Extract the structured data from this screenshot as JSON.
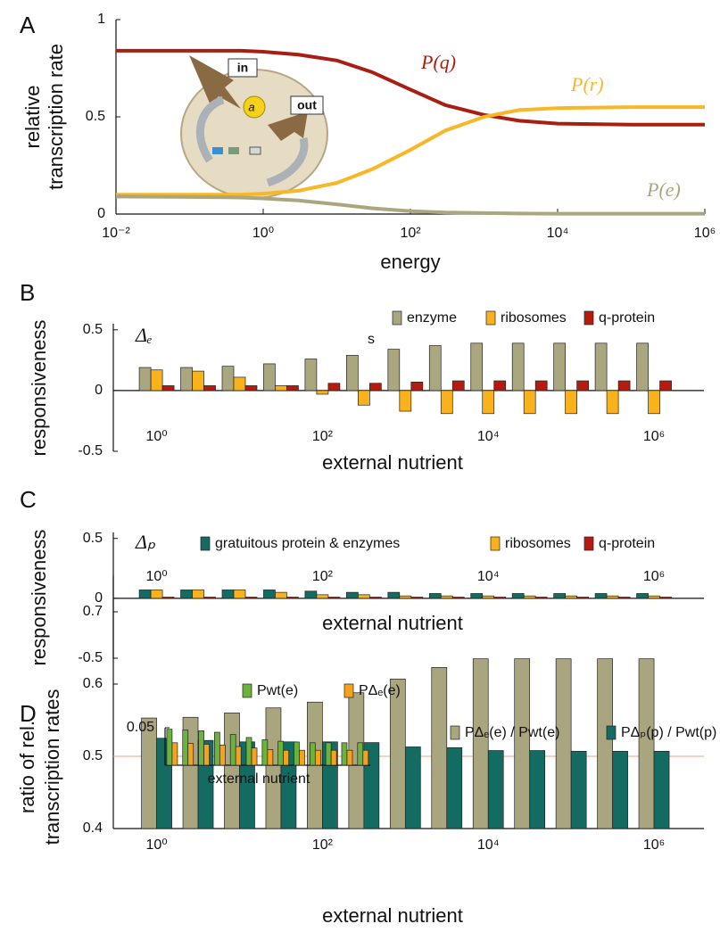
{
  "chart_data": [
    {
      "type": "line",
      "panel": "A",
      "xlabel": "energy",
      "ylabel": [
        "relative",
        "transcription rate"
      ],
      "xscale": "log",
      "x": [
        0.01,
        0.1,
        0.5,
        1,
        3,
        10,
        30,
        100,
        300,
        1000,
        3000,
        10000,
        100000,
        1000000
      ],
      "xlim": [
        0.01,
        1000000
      ],
      "xticks": [
        {
          "value": 0.01,
          "label": "10⁻²"
        },
        {
          "value": 1,
          "label": "10⁰"
        },
        {
          "value": 100,
          "label": "10²"
        },
        {
          "value": 10000,
          "label": "10⁴"
        },
        {
          "value": 1000000,
          "label": "10⁶"
        }
      ],
      "ylim": [
        0,
        1
      ],
      "yticks": [
        0,
        0.5,
        1
      ],
      "series": [
        {
          "name": "P(q)",
          "color": "#a81e12",
          "values": [
            0.84,
            0.84,
            0.84,
            0.835,
            0.82,
            0.79,
            0.73,
            0.64,
            0.56,
            0.51,
            0.48,
            0.465,
            0.46,
            0.46
          ]
        },
        {
          "name": "P(r)",
          "color": "#f9b625",
          "values": [
            0.1,
            0.1,
            0.1,
            0.105,
            0.12,
            0.16,
            0.23,
            0.33,
            0.43,
            0.5,
            0.535,
            0.545,
            0.55,
            0.55
          ]
        },
        {
          "name": "P(e)",
          "color": "#aaa67f",
          "values": [
            0.09,
            0.088,
            0.085,
            0.08,
            0.07,
            0.05,
            0.03,
            0.015,
            0.008,
            0.005,
            0.003,
            0.002,
            0.002,
            0.002
          ]
        }
      ],
      "diagram_labels": [
        "in",
        "out",
        "a"
      ]
    },
    {
      "type": "bar",
      "panel": "B",
      "xlabel": "external nutrient",
      "ylabel": "responsiveness",
      "xscale": "log",
      "x": [
        1,
        3.162,
        10,
        31.62,
        100,
        316.2,
        1000,
        3162,
        10000,
        31623,
        100000,
        316228,
        1000000
      ],
      "xlim": [
        0.3,
        4000000
      ],
      "xticks": [
        {
          "value": 1,
          "label": "10⁰"
        },
        {
          "value": 100,
          "label": "10²"
        },
        {
          "value": 10000,
          "label": "10⁴"
        },
        {
          "value": 1000000,
          "label": "10⁶"
        }
      ],
      "ylim": [
        -0.5,
        0.55
      ],
      "yticks": [
        -0.5,
        0,
        0.5
      ],
      "annotations": [
        "Δₑ",
        "s"
      ],
      "series": [
        {
          "name": "enzyme",
          "color": "#aaa67f",
          "values": [
            0.19,
            0.19,
            0.2,
            0.22,
            0.26,
            0.29,
            0.34,
            0.37,
            0.39,
            0.39,
            0.39,
            0.39,
            0.39
          ]
        },
        {
          "name": "ribosomes",
          "color": "#f9b21c",
          "values": [
            0.17,
            0.16,
            0.11,
            0.04,
            -0.03,
            -0.12,
            -0.17,
            -0.19,
            -0.19,
            -0.19,
            -0.19,
            -0.19,
            -0.19
          ]
        },
        {
          "name": "q-protein",
          "color": "#b41c10",
          "values": [
            0.04,
            0.04,
            0.04,
            0.04,
            0.06,
            0.06,
            0.07,
            0.08,
            0.08,
            0.08,
            0.08,
            0.08,
            0.08
          ]
        }
      ]
    },
    {
      "type": "bar",
      "panel": "C",
      "xlabel": "external nutrient",
      "ylabel": "responsiveness",
      "xscale": "log",
      "x": [
        1,
        3.162,
        10,
        31.62,
        100,
        316.2,
        1000,
        3162,
        10000,
        31623,
        100000,
        316228,
        1000000
      ],
      "xlim": [
        0.3,
        4000000
      ],
      "xticks": [
        {
          "value": 1,
          "label": "10⁰"
        },
        {
          "value": 100,
          "label": "10²"
        },
        {
          "value": 10000,
          "label": "10⁴"
        },
        {
          "value": 1000000,
          "label": "10⁶"
        }
      ],
      "ylim": [
        -0.5,
        0.55
      ],
      "yticks": [
        -0.5,
        0,
        0.5
      ],
      "annotations": [
        "Δₚ"
      ],
      "series": [
        {
          "name": "gratuitous protein & enzymes",
          "color": "#136b62",
          "values": [
            0.07,
            0.07,
            0.07,
            0.07,
            0.06,
            0.05,
            0.05,
            0.04,
            0.04,
            0.04,
            0.04,
            0.04,
            0.04
          ]
        },
        {
          "name": "ribosomes",
          "color": "#f9b21c",
          "values": [
            0.07,
            0.07,
            0.07,
            0.05,
            0.03,
            0.03,
            0.02,
            0.02,
            0.02,
            0.02,
            0.02,
            0.02,
            0.02
          ]
        },
        {
          "name": "q-protein",
          "color": "#b41c10",
          "values": [
            0.01,
            0.01,
            0.01,
            0.01,
            0.01,
            0.01,
            0.01,
            0.01,
            0.01,
            0.01,
            0.01,
            0.01,
            0.01
          ]
        }
      ]
    },
    {
      "type": "bar",
      "panel": "D",
      "xlabel": "external nutrient",
      "ylabel": [
        "ratio of rel.",
        "transcription rates"
      ],
      "xscale": "log",
      "x": [
        1,
        3.162,
        10,
        31.62,
        100,
        316.2,
        1000,
        3162,
        10000,
        31623,
        100000,
        316228,
        1000000
      ],
      "xlim": [
        0.3,
        4000000
      ],
      "xticks": [
        {
          "value": 1,
          "label": "10⁰"
        },
        {
          "value": 100,
          "label": "10²"
        },
        {
          "value": 10000,
          "label": "10⁴"
        },
        {
          "value": 1000000,
          "label": "10⁶"
        }
      ],
      "ylim": [
        0.4,
        0.75
      ],
      "yticks": [
        0.4,
        0.5,
        0.6,
        0.7
      ],
      "hline": 0.5,
      "hline_color": "#e8a47a",
      "series": [
        {
          "name": "PΔₑ(e) / Pwt(e)",
          "color": "#a9a67f",
          "values": [
            0.553,
            0.554,
            0.56,
            0.567,
            0.575,
            0.588,
            0.607,
            0.623,
            0.635,
            0.635,
            0.635,
            0.635,
            0.635
          ]
        },
        {
          "name": "PΔₚ(p) / Pwt(p)",
          "color": "#136b62",
          "values": [
            0.525,
            0.522,
            0.52,
            0.52,
            0.52,
            0.519,
            0.513,
            0.512,
            0.508,
            0.508,
            0.507,
            0.507,
            0.507
          ]
        }
      ]
    },
    {
      "type": "bar",
      "xlabel": "external nutrient",
      "xscale": "log",
      "x": [
        1,
        3.162,
        10,
        31.62,
        100,
        316.2,
        1000,
        3162,
        10000,
        31623,
        100000,
        316228,
        1000000
      ],
      "xlim": [
        0.6,
        1700000
      ],
      "ylim": [
        0,
        0.05
      ],
      "yticks": [
        0.05
      ],
      "series": [
        {
          "name": "Pwt(e)",
          "color": "#6cb33e",
          "values": [
            0.048,
            0.047,
            0.046,
            0.044,
            0.041,
            0.037,
            0.034,
            0.032,
            0.031,
            0.03,
            0.03,
            0.03,
            0.03
          ]
        },
        {
          "name": "PΔₑ(e)",
          "color": "#f7a21c",
          "values": [
            0.03,
            0.029,
            0.028,
            0.027,
            0.025,
            0.023,
            0.021,
            0.02,
            0.02,
            0.02,
            0.02,
            0.02,
            0.02
          ]
        }
      ]
    }
  ]
}
